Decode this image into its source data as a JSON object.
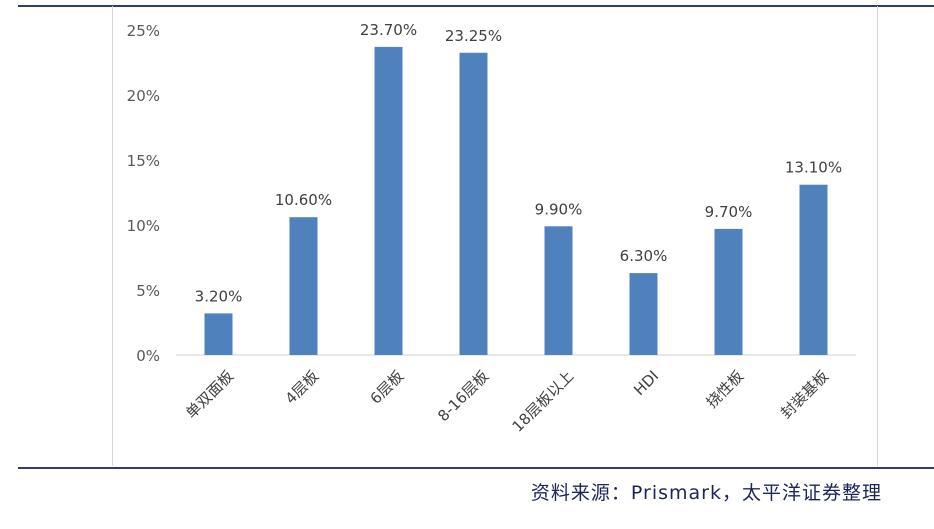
{
  "chart_data": {
    "type": "bar",
    "categories": [
      "单双面板",
      "4层板",
      "6层板",
      "8-16层板",
      "18层板以上",
      "HDI",
      "挠性板",
      "封装基板"
    ],
    "values": [
      3.2,
      10.6,
      23.7,
      23.25,
      9.9,
      6.3,
      9.7,
      13.1
    ],
    "value_labels": [
      "3.20%",
      "10.60%",
      "23.70%",
      "23.25%",
      "9.90%",
      "6.30%",
      "9.70%",
      "13.10%"
    ],
    "y_ticks": [
      "0%",
      "5%",
      "10%",
      "15%",
      "20%",
      "25%"
    ],
    "ylim": [
      0,
      25
    ],
    "grid": false,
    "bar_color": "#4f81bd"
  },
  "source": "资料来源：Prismark，太平洋证券整理"
}
